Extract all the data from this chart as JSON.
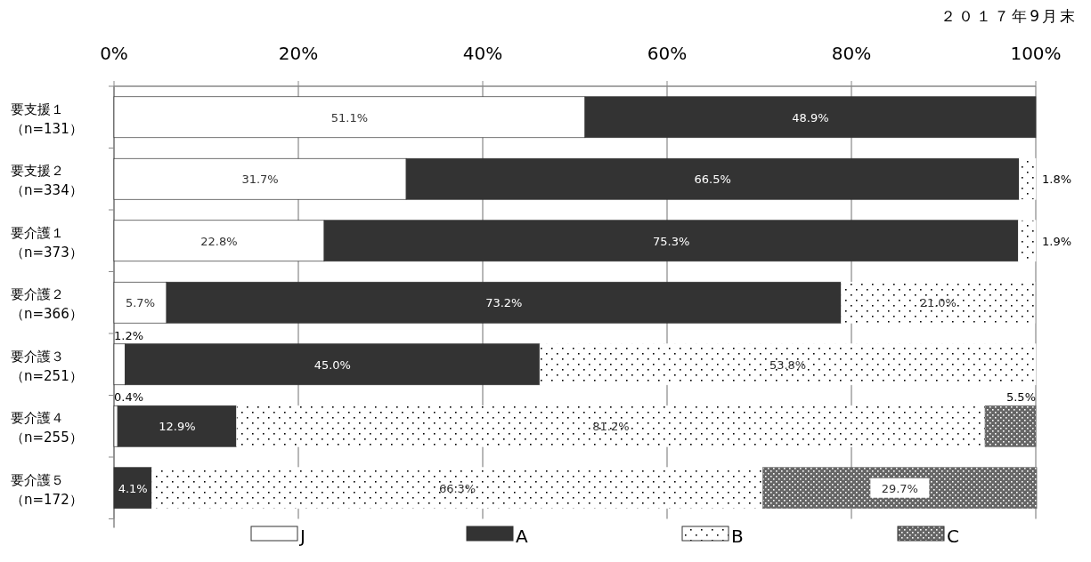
{
  "chart_data": {
    "type": "bar",
    "orientation": "horizontal",
    "stacked": true,
    "subtitle": "２０１７年9月末",
    "categories": [
      "要支援１（n=131）",
      "要支援２（n=334）",
      "要介護１（n=373）",
      "要介護２（n=366）",
      "要介護３（n=251）",
      "要介護４（n=255）",
      "要介護５（n=172）"
    ],
    "series": [
      {
        "name": "J",
        "color": "#ffffff",
        "values": [
          51.1,
          31.7,
          22.8,
          5.7,
          1.2,
          0.4,
          null
        ],
        "value_labels": [
          "51.1%",
          "31.7%",
          "22.8%",
          "5.7%",
          "1.2%",
          "0.4%",
          null
        ]
      },
      {
        "name": "A",
        "color": "#333333",
        "values": [
          48.9,
          66.5,
          75.3,
          73.2,
          45.0,
          12.9,
          4.1
        ],
        "value_labels": [
          "48.9%",
          "66.5%",
          "75.3%",
          "73.2%",
          "45.0%",
          "12.9%",
          "4.1%"
        ]
      },
      {
        "name": "B",
        "color": "#ffffff",
        "values": [
          null,
          1.8,
          1.9,
          21.0,
          53.8,
          81.2,
          66.3
        ],
        "value_labels": [
          null,
          "1.8%",
          "1.9%",
          "21.0%",
          "53.8%",
          "81.2%",
          "66.3%"
        ]
      },
      {
        "name": "C",
        "color": "#666666",
        "values": [
          null,
          null,
          null,
          null,
          null,
          5.5,
          29.7
        ],
        "value_labels": [
          null,
          null,
          null,
          null,
          null,
          "5.5%",
          "29.7%"
        ]
      }
    ],
    "xlim": [
      0,
      100
    ],
    "xticks": [
      {
        "value": 0,
        "label": "0%"
      },
      {
        "value": 20,
        "label": "20%"
      },
      {
        "value": 40,
        "label": "40%"
      },
      {
        "value": 60,
        "label": "60%"
      },
      {
        "value": 80,
        "label": "80%"
      },
      {
        "value": 100,
        "label": "100%"
      }
    ],
    "grid": "x",
    "legend": "bottom"
  }
}
